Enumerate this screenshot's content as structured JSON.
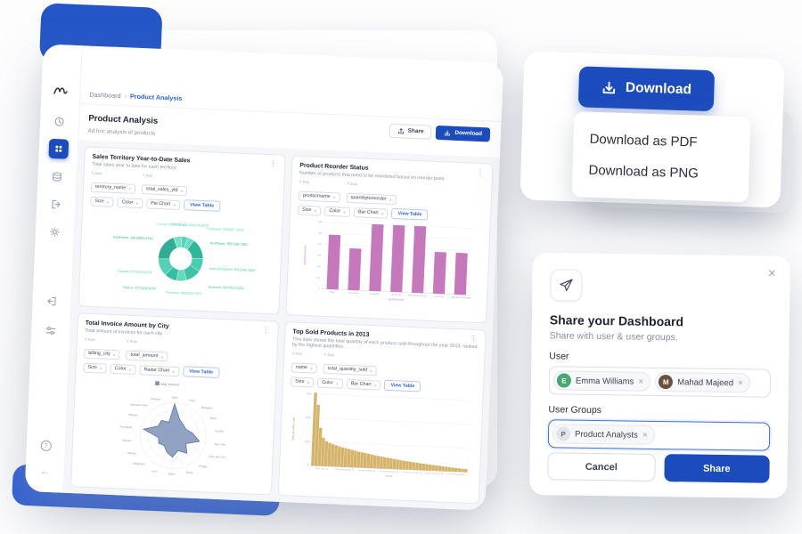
{
  "colors": {
    "accent_blue": "#1c4bbe",
    "accent_shape": "#2456c8",
    "accent_shape2": "#2e5fd6",
    "link_blue": "#2e63d9",
    "sidebar_icon": "#9aa3b2",
    "content_bg": "#f5f6f9",
    "panel_border": "#e4e7ed",
    "text_dark": "#1c2330",
    "text_gray": "#8a93a2"
  },
  "icons": {
    "kebab": "⋮",
    "caret": "∨",
    "close": "×",
    "chip_remove": "×",
    "help": "?",
    "collapse": "←",
    "share": "arrow-up-from-tray",
    "download": "arrow-down-into-tray",
    "send": "paper-plane",
    "logo": "gull-scribble",
    "monitor": "clock",
    "dashboards": "grid-2x2",
    "database": "database-cylinder",
    "export": "arrow-out-of-box",
    "settings": "gear",
    "integrations": "arrow-into-box",
    "preferences": "sliders"
  },
  "dashboard": {
    "header": {
      "breadcrumb_parent": "Dashboard",
      "breadcrumb_sep": "›",
      "breadcrumb_current": "Product Analysis",
      "title": "Product Analysis",
      "subtitle": "Ad hoc analysis of products",
      "share_label": "Share",
      "download_label": "Download"
    },
    "panels": [
      {
        "title": "Sales Territory Year-to-Date Sales",
        "subtitle": "Total sales year to date for each territory.",
        "x_axis_label": "X Axis",
        "x_field": "territory_name",
        "y_axis_label": "Y Axis",
        "y_field": "total_sales_ytd",
        "size_label": "Size",
        "color_label": "Color",
        "chart_type": "Pie Chart",
        "view_table_label": "View Table"
      },
      {
        "title": "Product Reorder Status",
        "subtitle": "Number of products that need to be reordered based on reorder point.",
        "x_axis_label": "X Axis",
        "x_field": "productname",
        "y_axis_label": "Y Axis",
        "y_field": "quantitytoreorder",
        "size_label": "Size",
        "color_label": "Color",
        "chart_type": "Bar Chart",
        "view_table_label": "View Table"
      },
      {
        "title": "Total Invoice Amount by City",
        "subtitle": "Total amount of invoices for each city.",
        "x_axis_label": "X Axis",
        "x_field": "billing_city",
        "y_axis_label": "Y Axis",
        "y_field": "total_amount",
        "size_label": "Size",
        "color_label": "Color",
        "chart_type": "Radar Chart",
        "view_table_label": "View Table"
      },
      {
        "title": "Top Sold Products in 2013",
        "subtitle": "This data shows the total quantity of each product sold throughout the year 2013, ranked by the highest quantities.",
        "x_axis_label": "X Axis",
        "x_field": "name",
        "y_axis_label": "Y Axis",
        "y_field": "total_quantity_sold",
        "size_label": "Size",
        "color_label": "Color",
        "chart_type": "Bar Chart",
        "view_table_label": "View Table"
      }
    ]
  },
  "download_menu": {
    "button_label": "Download",
    "items": [
      "Download as PDF",
      "Download as PNG"
    ]
  },
  "share_modal": {
    "title": "Share your Dashboard",
    "subtitle": "Share with user & user groups.",
    "user_label": "User",
    "groups_label": "User Groups",
    "users": [
      {
        "initial": "E",
        "name": "Emma Williams"
      },
      {
        "initial": "M",
        "name": "Mahad Majeed"
      }
    ],
    "groups": [
      {
        "initial": "P",
        "name": "Product Analysts"
      }
    ],
    "cancel_label": "Cancel",
    "share_label": "Share"
  },
  "chart_data": [
    {
      "type": "pie",
      "donut": true,
      "title": "Sales Territory Year-to-Date Sales",
      "labels": [
        "Northeast",
        "Southeast",
        "Northwest",
        "United Kingdom",
        "Australia",
        "Germany",
        "France",
        "Canada",
        "Southwest",
        "Central"
      ],
      "values": [
        2402176.8476,
        2538667.2515,
        7887186.7882,
        5012905.3656,
        5977814.9154,
        3805202.3478,
        4772398.3078,
        6771829.1376,
        10510853.8739,
        3072175.118
      ],
      "colors": [
        "#57d3b6",
        "#6adcc1",
        "#2eb89b",
        "#49cfae",
        "#3cc4a5",
        "#63d8bc",
        "#35bfa0",
        "#55d0b3",
        "#2fae93",
        "#74dfc6"
      ]
    },
    {
      "type": "bar",
      "title": "Product Reorder Status",
      "categories": [
        "Blade",
        "Fork Crown",
        "Freewheel",
        "Hex Nut 20",
        "Thin-Jam Lock Nut 9",
        "Lock Ring",
        "LL Mountain Handlebars"
      ],
      "values": [
        490,
        375,
        600,
        600,
        600,
        375,
        375
      ],
      "xlabel": "productname",
      "ylabel": "quantitytoreorder",
      "ymax": 600,
      "yticks": [
        0,
        100,
        200,
        300,
        400,
        500,
        600
      ],
      "color": "#c678bd",
      "axis_color": "#b07fc4"
    },
    {
      "type": "radar",
      "title": "Total Invoice Amount by City",
      "legend": "total_amount",
      "categories": [
        "Delhi",
        "Paris",
        "Budapest",
        "Reno",
        "London",
        "New York",
        "Salt Lake City",
        "Prague",
        "Rome",
        "Berlin",
        "Lyon",
        "Bangalore",
        "Ottawa",
        "Orlando",
        "Fort Worth",
        "Chicago",
        "Mountain View",
        "Stuttgart"
      ],
      "values": [
        86,
        46,
        40,
        38,
        52,
        72,
        40,
        60,
        42,
        58,
        47,
        36,
        44,
        40,
        82,
        48,
        52,
        38
      ],
      "max": 90,
      "fill": "#7e92b8",
      "stroke": "#5a6f96"
    },
    {
      "type": "bar",
      "title": "Top Sold Products in 2013",
      "xlabel": "name",
      "ylabel": "total_quantity_sold",
      "ymax": 3000,
      "yticks": [
        0,
        1000,
        2000,
        3000
      ],
      "values": [
        3050,
        2550,
        1600,
        1180,
        1050,
        980,
        930,
        890,
        855,
        820,
        790,
        760,
        730,
        700,
        672,
        645,
        619,
        594,
        570,
        547,
        525,
        503,
        482,
        462,
        442,
        423,
        405,
        387,
        370,
        353,
        337,
        321,
        306,
        291,
        277,
        263,
        250,
        237,
        224,
        212,
        200,
        188,
        177,
        166,
        156,
        146,
        136,
        127
      ],
      "tick_labels": [
        "AWC Logo Cap",
        "Mountain-200 Black, 42",
        "Touring-1000 Blue, 60",
        "Mountain-100 Silver, 38",
        "LL Road Frame - Black, 58",
        "Road-350-W Yellow, 48",
        "HL Road Rear Wheel"
      ],
      "color": "#d6b36b",
      "axis_color": "#c2a35f"
    }
  ]
}
